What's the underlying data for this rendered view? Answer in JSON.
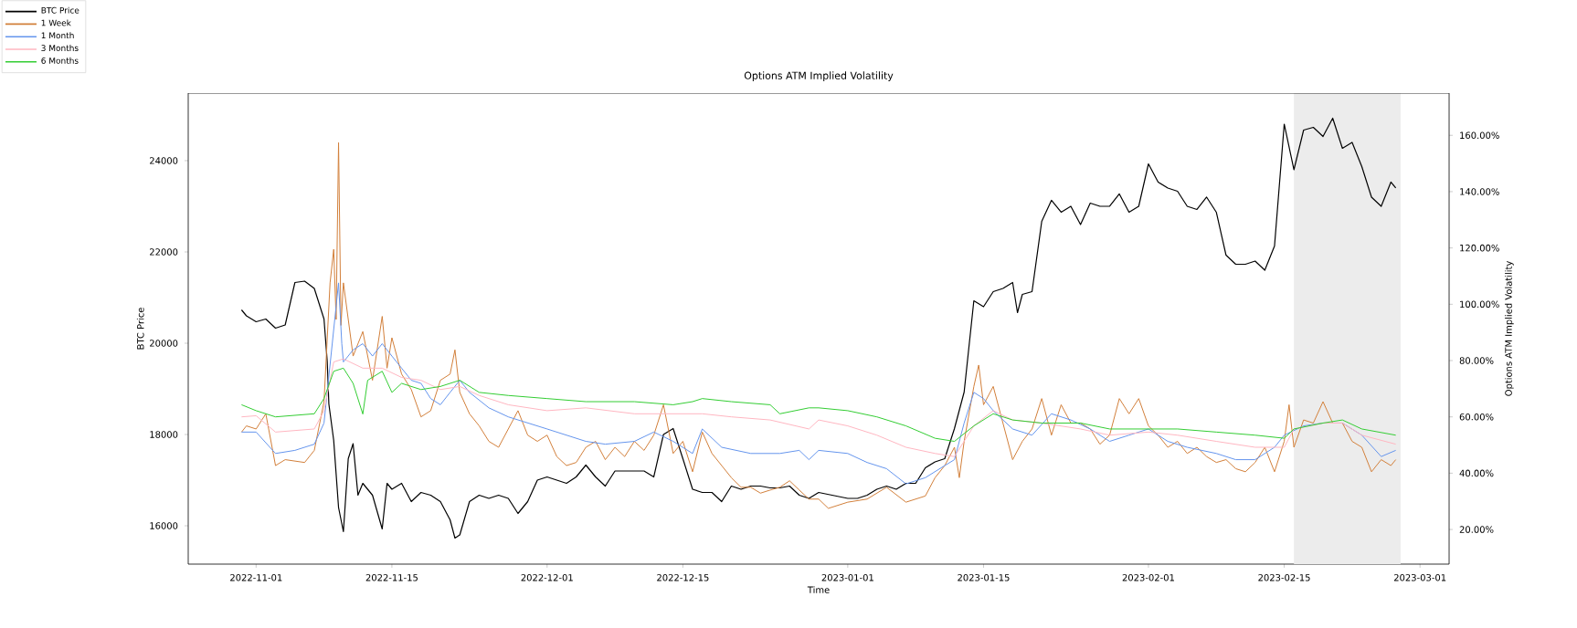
{
  "chart_data": {
    "type": "line",
    "title": "Options ATM Implied Volatility",
    "xlabel": "Time",
    "ylabel": "BTC Price",
    "y2label": "Options ATM Implied Volatility",
    "legend": "top left",
    "xlim": [
      "2022-10-25",
      "2023-03-04"
    ],
    "xticks": [
      "2022-11-01",
      "2022-11-15",
      "2022-12-01",
      "2022-12-15",
      "2023-01-01",
      "2023-01-15",
      "2023-02-01",
      "2023-02-15",
      "2023-03-01"
    ],
    "ylim": [
      15160,
      25480
    ],
    "yticks": [
      16000,
      18000,
      20000,
      22000,
      24000
    ],
    "y2lim": [
      7.7,
      175
    ],
    "y2ticks": [
      {
        "value": 20,
        "label": "20.00%"
      },
      {
        "value": 40,
        "label": "40.00%"
      },
      {
        "value": 60,
        "label": "60.00%"
      },
      {
        "value": 80,
        "label": "80.00%"
      },
      {
        "value": 100,
        "label": "100.00%"
      },
      {
        "value": 120,
        "label": "120.00%"
      },
      {
        "value": 140,
        "label": "140.00%"
      },
      {
        "value": 160,
        "label": "160.00%"
      }
    ],
    "bands": [
      {
        "axis": "x",
        "from": "2023-02-16",
        "to": "2023-02-27",
        "color": "#ececec"
      }
    ],
    "series": [
      {
        "name": "BTC Price",
        "color": "#000000",
        "x": [
          "2022-10-30T12:00",
          "2022-10-31",
          "2022-11-01",
          "2022-11-02",
          "2022-11-03",
          "2022-11-04",
          "2022-11-05",
          "2022-11-06",
          "2022-11-07",
          "2022-11-08",
          "2022-11-08T08:00",
          "2022-11-08T12:00",
          "2022-11-09",
          "2022-11-09T12:00",
          "2022-11-10",
          "2022-11-10T12:00",
          "2022-11-11",
          "2022-11-11T12:00",
          "2022-11-12",
          "2022-11-13",
          "2022-11-14",
          "2022-11-14T12:00",
          "2022-11-15",
          "2022-11-16",
          "2022-11-17",
          "2022-11-18",
          "2022-11-19",
          "2022-11-20",
          "2022-11-21",
          "2022-11-21T12:00",
          "2022-11-22",
          "2022-11-23",
          "2022-11-24",
          "2022-11-25",
          "2022-11-26",
          "2022-11-27",
          "2022-11-28",
          "2022-11-29",
          "2022-11-30",
          "2022-12-01",
          "2022-12-02",
          "2022-12-03",
          "2022-12-04",
          "2022-12-05",
          "2022-12-06",
          "2022-12-07",
          "2022-12-08",
          "2022-12-09",
          "2022-12-10",
          "2022-12-11",
          "2022-12-12",
          "2022-12-13",
          "2022-12-14",
          "2022-12-15",
          "2022-12-16",
          "2022-12-17",
          "2022-12-18",
          "2022-12-19",
          "2022-12-20",
          "2022-12-21",
          "2022-12-22",
          "2022-12-23",
          "2022-12-24",
          "2022-12-25",
          "2022-12-26",
          "2022-12-27",
          "2022-12-28",
          "2022-12-29",
          "2023-01-01",
          "2023-01-02",
          "2023-01-03",
          "2023-01-04",
          "2023-01-05",
          "2023-01-06",
          "2023-01-07",
          "2023-01-08",
          "2023-01-09",
          "2023-01-10",
          "2023-01-11",
          "2023-01-12",
          "2023-01-13",
          "2023-01-14",
          "2023-01-15",
          "2023-01-16",
          "2023-01-17",
          "2023-01-18",
          "2023-01-18T12:00",
          "2023-01-19",
          "2023-01-20",
          "2023-01-21",
          "2023-01-22",
          "2023-01-23",
          "2023-01-24",
          "2023-01-25",
          "2023-01-26",
          "2023-01-27",
          "2023-01-28",
          "2023-01-29",
          "2023-01-30",
          "2023-01-31",
          "2023-02-01",
          "2023-02-02",
          "2023-02-03",
          "2023-02-04",
          "2023-02-05",
          "2023-02-06",
          "2023-02-07",
          "2023-02-08",
          "2023-02-09",
          "2023-02-10",
          "2023-02-11",
          "2023-02-12",
          "2023-02-13",
          "2023-02-14",
          "2023-02-15",
          "2023-02-16",
          "2023-02-17",
          "2023-02-18",
          "2023-02-19",
          "2023-02-20",
          "2023-02-21",
          "2023-02-22",
          "2023-02-23",
          "2023-02-24",
          "2023-02-25",
          "2023-02-26",
          "2023-02-26T12:00"
        ],
        "values": [
          20730,
          20600,
          20470,
          20530,
          20330,
          20400,
          21330,
          21360,
          21200,
          20530,
          19600,
          18670,
          17870,
          16400,
          15870,
          17470,
          17800,
          16670,
          16930,
          16670,
          15930,
          16930,
          16800,
          16930,
          16530,
          16730,
          16670,
          16530,
          16130,
          15730,
          15800,
          16530,
          16670,
          16600,
          16670,
          16600,
          16270,
          16530,
          17000,
          17070,
          17000,
          16930,
          17070,
          17330,
          17070,
          16870,
          17200,
          17200,
          17200,
          17200,
          17070,
          18000,
          18130,
          17470,
          16800,
          16730,
          16730,
          16530,
          16870,
          16800,
          16870,
          16870,
          16830,
          16830,
          16870,
          16670,
          16600,
          16730,
          16600,
          16600,
          16670,
          16800,
          16870,
          16800,
          16930,
          16930,
          17270,
          17400,
          17470,
          18130,
          18930,
          20930,
          20800,
          21130,
          21200,
          21330,
          20670,
          21070,
          21130,
          22670,
          23130,
          22870,
          23000,
          22600,
          23070,
          23000,
          23000,
          23270,
          22870,
          23000,
          23930,
          23530,
          23400,
          23330,
          23000,
          22930,
          23200,
          22870,
          21930,
          21730,
          21730,
          21800,
          21600,
          22130,
          24800,
          23800,
          24670,
          24730,
          24530,
          24930,
          24270,
          24400,
          23870,
          23200,
          23000,
          23530,
          23400
        ]
      },
      {
        "name": "1 Week",
        "color": "#d2803a",
        "axis": "y2",
        "x": [
          "2022-10-30T12:00",
          "2022-10-31",
          "2022-11-01",
          "2022-11-02",
          "2022-11-03",
          "2022-11-04",
          "2022-11-06",
          "2022-11-07",
          "2022-11-08",
          "2022-11-08T15:00",
          "2022-11-09",
          "2022-11-09T06:00",
          "2022-11-09T12:00",
          "2022-11-09T18:00",
          "2022-11-10",
          "2022-11-11",
          "2022-11-12",
          "2022-11-13",
          "2022-11-14",
          "2022-11-14T12:00",
          "2022-11-15",
          "2022-11-16",
          "2022-11-17",
          "2022-11-18",
          "2022-11-19",
          "2022-11-20",
          "2022-11-21",
          "2022-11-21T12:00",
          "2022-11-22",
          "2022-11-23",
          "2022-11-24",
          "2022-11-25",
          "2022-11-26",
          "2022-11-27",
          "2022-11-28",
          "2022-11-29",
          "2022-11-30",
          "2022-12-01",
          "2022-12-02",
          "2022-12-03",
          "2022-12-04",
          "2022-12-05",
          "2022-12-06",
          "2022-12-07",
          "2022-12-08",
          "2022-12-09",
          "2022-12-10",
          "2022-12-11",
          "2022-12-12",
          "2022-12-13",
          "2022-12-14",
          "2022-12-15",
          "2022-12-16",
          "2022-12-17",
          "2022-12-18",
          "2022-12-19",
          "2022-12-20",
          "2022-12-21",
          "2022-12-22",
          "2022-12-23",
          "2022-12-24",
          "2022-12-25",
          "2022-12-26",
          "2022-12-27",
          "2022-12-28",
          "2022-12-29",
          "2022-12-30",
          "2023-01-01",
          "2023-01-03",
          "2023-01-05",
          "2023-01-07",
          "2023-01-09",
          "2023-01-10",
          "2023-01-11",
          "2023-01-12",
          "2023-01-12T12:00",
          "2023-01-13",
          "2023-01-14",
          "2023-01-14T12:00",
          "2023-01-15",
          "2023-01-16",
          "2023-01-17",
          "2023-01-18",
          "2023-01-19",
          "2023-01-20",
          "2023-01-21",
          "2023-01-22",
          "2023-01-23",
          "2023-01-24",
          "2023-01-25",
          "2023-01-26",
          "2023-01-27",
          "2023-01-28",
          "2023-01-29",
          "2023-01-30",
          "2023-01-31",
          "2023-02-01",
          "2023-02-02",
          "2023-02-03",
          "2023-02-04",
          "2023-02-05",
          "2023-02-06",
          "2023-02-07",
          "2023-02-08",
          "2023-02-09",
          "2023-02-10",
          "2023-02-11",
          "2023-02-12",
          "2023-02-13",
          "2023-02-14",
          "2023-02-15",
          "2023-02-15T12:00",
          "2023-02-16",
          "2023-02-17",
          "2023-02-18",
          "2023-02-19",
          "2023-02-20",
          "2023-02-21",
          "2023-02-22",
          "2023-02-23",
          "2023-02-24",
          "2023-02-25",
          "2023-02-26",
          "2023-02-26T12:00"
        ],
        "values": [
          54.6,
          56.8,
          55.7,
          61.1,
          42.7,
          44.8,
          43.8,
          48.1,
          65.4,
          107.6,
          119.5,
          94.6,
          157.4,
          92.5,
          107.6,
          81.6,
          90.3,
          73,
          95.7,
          77.3,
          88.1,
          75.2,
          69.7,
          60,
          62.2,
          73,
          75.2,
          83.8,
          68.7,
          61.1,
          56.8,
          51.3,
          49.2,
          55.7,
          62.2,
          53.5,
          51.3,
          53.5,
          45.9,
          42.7,
          43.8,
          49.2,
          51.3,
          44.8,
          49.2,
          45.9,
          51.3,
          48.1,
          53.5,
          64.3,
          47,
          51.3,
          40.5,
          54.6,
          47,
          42.7,
          38.4,
          35,
          35,
          32.9,
          34,
          35,
          37.3,
          34,
          30.8,
          30.8,
          27.5,
          29.7,
          30.8,
          35,
          29.7,
          31.9,
          38.4,
          42.7,
          49.2,
          38.4,
          51.3,
          70.8,
          78.4,
          64.3,
          70.8,
          57.8,
          44.8,
          51.3,
          55.7,
          66.5,
          53.5,
          64.3,
          57.8,
          57.8,
          55.7,
          50.3,
          53.5,
          66.5,
          61.1,
          66.5,
          56.8,
          53.5,
          49.2,
          51.3,
          47,
          49.2,
          45.9,
          43.8,
          44.8,
          41.6,
          40.5,
          43.8,
          49.2,
          40.5,
          51.3,
          64.3,
          49.2,
          58.9,
          57.8,
          65.4,
          57.8,
          57.8,
          51.3,
          49.2,
          40.5,
          44.8,
          42.7,
          44.8
        ]
      },
      {
        "name": "1 Month",
        "color": "#6495ed",
        "axis": "y2",
        "x": [
          "2022-10-30T12:00",
          "2022-11-01",
          "2022-11-03",
          "2022-11-05",
          "2022-11-07",
          "2022-11-08",
          "2022-11-09T12:00",
          "2022-11-09T20:00",
          "2022-11-10",
          "2022-11-11",
          "2022-11-12",
          "2022-11-13",
          "2022-11-14",
          "2022-11-15",
          "2022-11-16",
          "2022-11-17",
          "2022-11-18",
          "2022-11-19",
          "2022-11-20",
          "2022-11-21",
          "2022-11-22",
          "2022-11-23",
          "2022-11-25",
          "2022-11-27",
          "2022-12-01",
          "2022-12-03",
          "2022-12-05",
          "2022-12-07",
          "2022-12-10",
          "2022-12-12",
          "2022-12-14",
          "2022-12-16",
          "2022-12-17",
          "2022-12-19",
          "2022-12-22",
          "2022-12-25",
          "2022-12-27",
          "2022-12-28",
          "2022-12-29",
          "2023-01-01",
          "2023-01-03",
          "2023-01-05",
          "2023-01-07",
          "2023-01-09",
          "2023-01-11",
          "2023-01-12",
          "2023-01-13",
          "2023-01-14",
          "2023-01-15",
          "2023-01-16",
          "2023-01-18",
          "2023-01-20",
          "2023-01-22",
          "2023-01-24",
          "2023-01-26",
          "2023-01-28",
          "2023-01-30",
          "2023-02-01",
          "2023-02-03",
          "2023-02-05",
          "2023-02-08",
          "2023-02-10",
          "2023-02-12",
          "2023-02-14",
          "2023-02-15",
          "2023-02-17",
          "2023-02-19",
          "2023-02-21",
          "2023-02-23",
          "2023-02-25",
          "2023-02-26T12:00"
        ],
        "values": [
          54.6,
          54.6,
          47,
          48.1,
          50.3,
          57.8,
          107.6,
          86,
          79.5,
          83.8,
          86,
          81.6,
          86,
          81.6,
          77.3,
          73,
          71.9,
          66.5,
          64.3,
          68.7,
          73,
          68.7,
          63.2,
          60,
          55.7,
          53.5,
          51.3,
          50.3,
          51.3,
          54.6,
          51.3,
          47,
          55.7,
          49.2,
          47,
          47,
          48.1,
          44.8,
          48.1,
          47,
          43.8,
          41.6,
          36.2,
          38.4,
          42.7,
          44.8,
          57.8,
          68.7,
          66.5,
          62.2,
          55.7,
          53.5,
          61.1,
          58.9,
          55.7,
          51.3,
          53.5,
          55.7,
          51.3,
          49.2,
          47,
          44.8,
          44.8,
          49.2,
          53.5,
          56.8,
          57.8,
          57.8,
          53.5,
          45.9,
          48.1
        ]
      },
      {
        "name": "3 Months",
        "color": "#ffb6c1",
        "axis": "y2",
        "x": [
          "2022-10-30T12:00",
          "2022-11-01",
          "2022-11-03",
          "2022-11-07",
          "2022-11-08",
          "2022-11-09",
          "2022-11-10",
          "2022-11-12",
          "2022-11-14",
          "2022-11-16",
          "2022-11-18",
          "2022-11-20",
          "2022-11-22",
          "2022-11-24",
          "2022-11-27",
          "2022-12-01",
          "2022-12-05",
          "2022-12-10",
          "2022-12-14",
          "2022-12-17",
          "2022-12-20",
          "2022-12-24",
          "2022-12-28",
          "2022-12-29",
          "2023-01-01",
          "2023-01-04",
          "2023-01-07",
          "2023-01-10",
          "2023-01-12",
          "2023-01-14",
          "2023-01-16",
          "2023-01-18",
          "2023-01-21",
          "2023-01-25",
          "2023-01-28",
          "2023-02-01",
          "2023-02-04",
          "2023-02-08",
          "2023-02-12",
          "2023-02-15",
          "2023-02-16",
          "2023-02-19",
          "2023-02-21",
          "2023-02-23",
          "2023-02-26T12:00"
        ],
        "values": [
          60,
          60.4,
          54.6,
          55.7,
          62.2,
          79.5,
          80.6,
          77.3,
          77.3,
          74,
          73,
          69.7,
          70.8,
          67.6,
          64.3,
          62.2,
          63.2,
          61.1,
          61.1,
          61.1,
          60,
          58.9,
          55.7,
          58.9,
          56.8,
          53.5,
          49.2,
          47,
          45.9,
          56.8,
          62.2,
          58.9,
          57.8,
          55.7,
          53.5,
          54.6,
          53.5,
          51.3,
          49.2,
          49.2,
          55.7,
          57.8,
          57.8,
          53.5,
          50.3
        ]
      },
      {
        "name": "6 Months",
        "color": "#32cd32",
        "axis": "y2",
        "x": [
          "2022-10-30T12:00",
          "2022-11-01",
          "2022-11-03",
          "2022-11-07",
          "2022-11-08",
          "2022-11-09",
          "2022-11-10",
          "2022-11-11",
          "2022-11-12",
          "2022-11-12T12:00",
          "2022-11-14",
          "2022-11-15",
          "2022-11-16",
          "2022-11-18",
          "2022-11-20",
          "2022-11-22",
          "2022-11-24",
          "2022-11-27",
          "2022-12-01",
          "2022-12-05",
          "2022-12-10",
          "2022-12-14",
          "2022-12-16",
          "2022-12-17",
          "2022-12-20",
          "2022-12-24",
          "2022-12-25",
          "2022-12-28",
          "2022-12-29",
          "2023-01-01",
          "2023-01-04",
          "2023-01-07",
          "2023-01-10",
          "2023-01-12",
          "2023-01-14",
          "2023-01-16",
          "2023-01-18",
          "2023-01-21",
          "2023-01-25",
          "2023-01-28",
          "2023-02-01",
          "2023-02-04",
          "2023-02-08",
          "2023-02-12",
          "2023-02-15",
          "2023-02-16",
          "2023-02-19",
          "2023-02-21",
          "2023-02-23",
          "2023-02-26T12:00"
        ],
        "values": [
          64.3,
          62.2,
          60,
          61.1,
          66.5,
          76.2,
          77.3,
          71.9,
          61,
          73,
          76.2,
          68.7,
          71.9,
          69.7,
          70.8,
          73,
          68.7,
          67.6,
          66.5,
          65.4,
          65.4,
          64.3,
          65.4,
          66.5,
          65.4,
          64.3,
          61.1,
          63.2,
          63.2,
          62.2,
          60,
          56.8,
          52.4,
          51.3,
          56.8,
          61.1,
          58.9,
          57.8,
          57.8,
          55.7,
          55.7,
          55.7,
          54.6,
          53.5,
          52.4,
          55.7,
          57.8,
          58.9,
          55.7,
          53.5
        ]
      }
    ]
  }
}
